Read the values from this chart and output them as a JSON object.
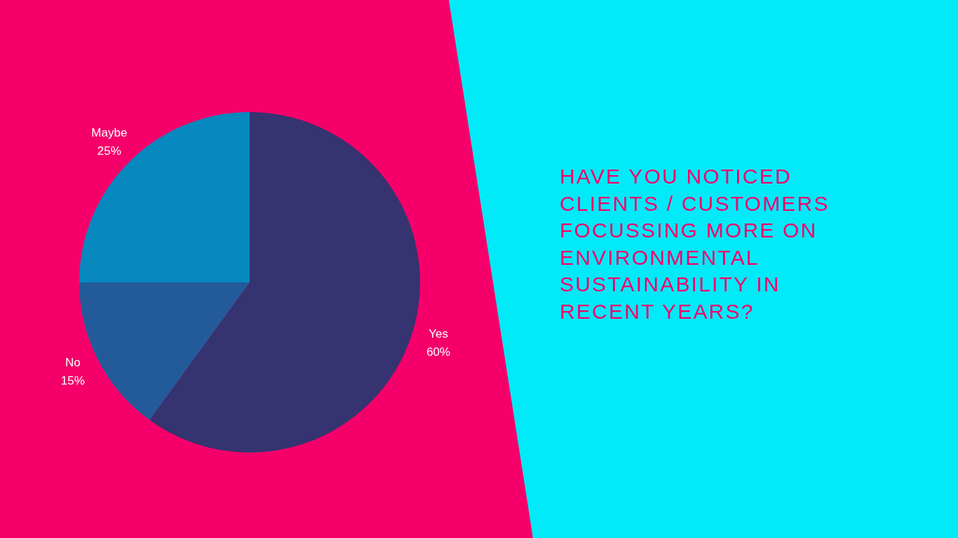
{
  "chart_data": {
    "type": "pie",
    "title": "HAVE YOU NOTICED CLIENTS / CUSTOMERS FOCUSSING MORE ON ENVIRONMENTAL SUSTAINABILITY IN RECENT YEARS?",
    "categories": [
      "Yes",
      "No",
      "Maybe"
    ],
    "values": [
      60,
      15,
      25
    ],
    "colors": [
      "#353370",
      "#235b9a",
      "#0788bf"
    ],
    "value_labels": [
      "60%",
      "15%",
      "25%"
    ],
    "legend": false
  }
}
